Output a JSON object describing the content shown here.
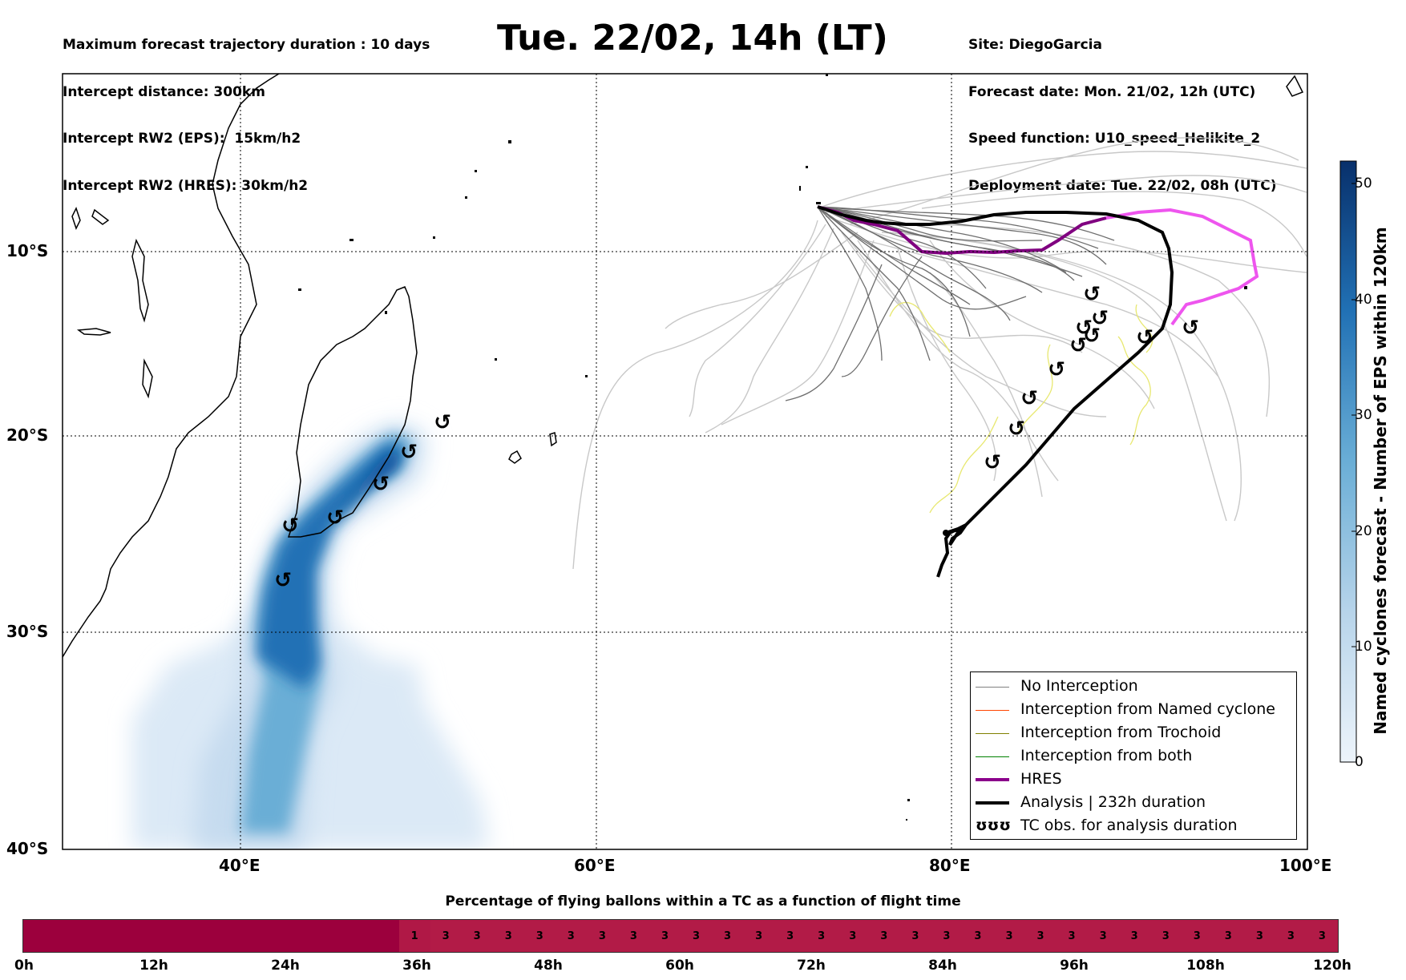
{
  "header": {
    "left_lines": [
      "Maximum forecast trajectory duration : 10 days",
      "Intercept distance: 300km",
      "Intercept RW2 (EPS):  15km/h2",
      "Intercept RW2 (HRES): 30km/h2"
    ],
    "title": "Tue. 22/02, 14h (LT)",
    "right_lines": [
      "Site: DiegoGarcia",
      "Forecast date: Mon. 21/02, 12h (UTC)",
      "Speed function: U10_speed_Helikite_2",
      "Deployment date: Tue. 22/02, 08h (UTC)"
    ]
  },
  "map": {
    "lat_labels": [
      "10°S",
      "20°S",
      "30°S",
      "40°S"
    ],
    "lon_labels": [
      "40°E",
      "60°E",
      "80°E",
      "100°E"
    ],
    "lon_range": [
      30,
      100
    ],
    "lat_range": [
      -40,
      0
    ],
    "grid": true,
    "grid_style": "dotted"
  },
  "legend": {
    "items": [
      {
        "label": "No Interception",
        "color": "#808080",
        "width": 1
      },
      {
        "label": "Interception from Named cyclone",
        "color": "#ff4500",
        "width": 1
      },
      {
        "label": "Interception from Trochoid",
        "color": "#808000",
        "width": 1
      },
      {
        "label": "Interception from both",
        "color": "#008000",
        "width": 1
      },
      {
        "label": "HRES",
        "color": "#8b008b",
        "width": 4
      },
      {
        "label": "Analysis | 232h duration",
        "color": "#000000",
        "width": 4
      },
      {
        "label": "TC obs. for analysis duration",
        "icon": "ʊʊʊ"
      }
    ],
    "placement": "lower-right"
  },
  "colorbar": {
    "title": "Named cyclones forecast - Number of EPS within 120km",
    "ticks": [
      "0",
      "10",
      "20",
      "30",
      "40",
      "50"
    ],
    "range": [
      0,
      52
    ],
    "colors": [
      "#e8f1fa",
      "#08306b"
    ]
  },
  "bottom": {
    "title": "Percentage of flying ballons within a TC as a function of flight time",
    "cells": [
      "",
      "",
      "",
      "",
      "",
      "",
      "",
      "",
      "",
      "",
      "",
      "",
      "1",
      "3",
      "3",
      "3",
      "3",
      "3",
      "3",
      "3",
      "3",
      "3",
      "3",
      "3",
      "3",
      "3",
      "3",
      "3",
      "3",
      "3",
      "3",
      "3",
      "3",
      "3",
      "3",
      "3",
      "3",
      "3",
      "3",
      "3",
      "3",
      "3"
    ],
    "hour_labels": [
      "0h",
      "12h",
      "24h",
      "36h",
      "48h",
      "60h",
      "72h",
      "84h",
      "96h",
      "108h",
      "120h"
    ],
    "colors": {
      "zero": "#9c003d",
      "low": "#b01846",
      "high": "#b21b47"
    }
  },
  "icons": {
    "tc_obs": "cyclone-icon"
  }
}
